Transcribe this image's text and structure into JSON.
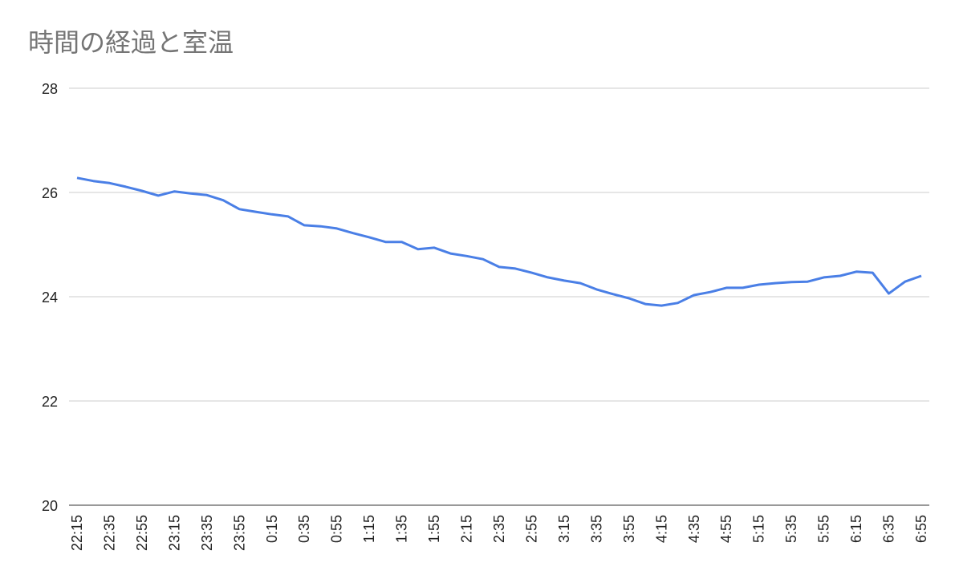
{
  "chart_data": {
    "type": "line",
    "title": "時間の経過と室温",
    "categories": [
      "22:15",
      null,
      "22:35",
      null,
      "22:55",
      null,
      "23:15",
      null,
      "23:35",
      null,
      "23:55",
      null,
      "0:15",
      null,
      "0:35",
      null,
      "0:55",
      null,
      "1:15",
      null,
      "1:35",
      null,
      "1:55",
      null,
      "2:15",
      null,
      "2:35",
      null,
      "2:55",
      null,
      "3:15",
      null,
      "3:35",
      null,
      "3:55",
      null,
      "4:15",
      null,
      "4:35",
      null,
      "4:55",
      null,
      "5:15",
      null,
      "5:35",
      null,
      "5:55",
      null,
      "6:15",
      null,
      "6:35",
      null,
      "6:55"
    ],
    "series": [
      {
        "color": "#4a7fe6",
        "values": [
          26.28,
          26.22,
          26.18,
          26.11,
          26.03,
          25.94,
          26.02,
          25.98,
          25.95,
          25.85,
          25.68,
          25.63,
          25.58,
          25.54,
          25.37,
          25.35,
          25.31,
          25.22,
          25.14,
          25.05,
          25.05,
          24.91,
          24.94,
          24.83,
          24.78,
          24.72,
          24.57,
          24.54,
          24.46,
          24.37,
          24.31,
          24.26,
          24.14,
          24.05,
          23.97,
          23.86,
          23.83,
          23.88,
          24.03,
          24.09,
          24.17,
          24.17,
          24.23,
          24.26,
          24.28,
          24.29,
          24.37,
          24.4,
          24.48,
          24.46,
          24.06,
          24.29,
          24.4
        ]
      }
    ],
    "ylim": [
      20,
      28
    ],
    "yticks": [
      20,
      22,
      24,
      26,
      28
    ],
    "grid": true
  }
}
